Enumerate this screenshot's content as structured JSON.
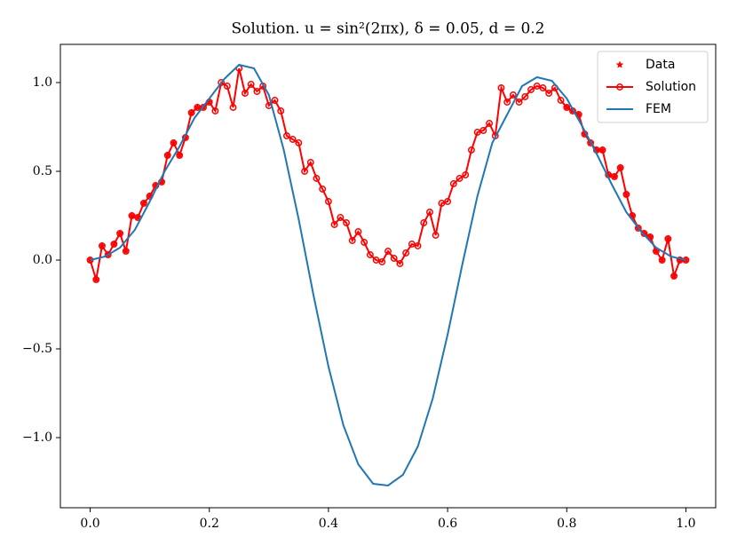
{
  "chart_data": {
    "type": "line",
    "title": "Solution. u = sin²(2πx), δ = 0.05, d = 0.2",
    "xlim": [
      -0.05,
      1.05
    ],
    "ylim": [
      -1.395,
      1.215
    ],
    "xticks": [
      {
        "value": 0,
        "label": "0.0"
      },
      0.2,
      0.4,
      0.6,
      0.8,
      {
        "value": 1,
        "label": "1.0"
      }
    ],
    "yticks": [
      {
        "value": -1,
        "label": "−1.0"
      },
      {
        "value": -0.5,
        "label": "−0.5"
      },
      {
        "value": 0,
        "label": "0.0"
      },
      0.5,
      {
        "value": 1,
        "label": "1.0"
      }
    ],
    "legend": "upper right",
    "series": [
      {
        "name": "Data",
        "color": "#ff0000",
        "marker": "star",
        "line": false,
        "x": [
          0,
          0.01,
          0.02,
          0.03,
          0.04,
          0.05,
          0.06,
          0.07,
          0.08,
          0.09,
          0.1,
          0.11,
          0.12,
          0.13,
          0.14,
          0.15,
          0.16,
          0.17,
          0.18,
          0.19,
          0.2,
          0.8,
          0.81,
          0.82,
          0.83,
          0.84,
          0.85,
          0.86,
          0.87,
          0.88,
          0.89,
          0.9,
          0.91,
          0.92,
          0.93,
          0.94,
          0.95,
          0.96,
          0.97,
          0.98,
          0.99,
          1
        ],
        "values": [
          0,
          -0.11,
          0.08,
          0.03,
          0.09,
          0.15,
          0.05,
          0.25,
          0.24,
          0.32,
          0.36,
          0.42,
          0.44,
          0.59,
          0.66,
          0.59,
          0.69,
          0.83,
          0.86,
          0.86,
          0.89,
          0.86,
          0.84,
          0.82,
          0.71,
          0.66,
          0.62,
          0.62,
          0.48,
          0.47,
          0.52,
          0.37,
          0.25,
          0.18,
          0.15,
          0.13,
          0.05,
          0,
          0.12,
          -0.09,
          0,
          0
        ]
      },
      {
        "name": "Solution",
        "color": "#ff0000",
        "marker": "circle",
        "line": true,
        "x": [
          0,
          0.01,
          0.02,
          0.03,
          0.04,
          0.05,
          0.06,
          0.07,
          0.08,
          0.09,
          0.1,
          0.11,
          0.12,
          0.13,
          0.14,
          0.15,
          0.16,
          0.17,
          0.18,
          0.19,
          0.2,
          0.21,
          0.22,
          0.23,
          0.24,
          0.25,
          0.26,
          0.27,
          0.28,
          0.29,
          0.3,
          0.31,
          0.32,
          0.33,
          0.34,
          0.35,
          0.36,
          0.37,
          0.38,
          0.39,
          0.4,
          0.41,
          0.42,
          0.43,
          0.44,
          0.45,
          0.46,
          0.47,
          0.48,
          0.49,
          0.5,
          0.51,
          0.52,
          0.53,
          0.54,
          0.55,
          0.56,
          0.57,
          0.58,
          0.59,
          0.6,
          0.61,
          0.62,
          0.63,
          0.64,
          0.65,
          0.66,
          0.67,
          0.68,
          0.69,
          0.7,
          0.71,
          0.72,
          0.73,
          0.74,
          0.75,
          0.76,
          0.77,
          0.78,
          0.79,
          0.8,
          0.81,
          0.82,
          0.83,
          0.84,
          0.85,
          0.86,
          0.87,
          0.88,
          0.89,
          0.9,
          0.91,
          0.92,
          0.93,
          0.94,
          0.95,
          0.96,
          0.97,
          0.98,
          0.99,
          1
        ],
        "values": [
          0,
          -0.11,
          0.08,
          0.03,
          0.09,
          0.15,
          0.05,
          0.25,
          0.24,
          0.32,
          0.36,
          0.42,
          0.44,
          0.59,
          0.66,
          0.59,
          0.69,
          0.83,
          0.86,
          0.86,
          0.89,
          0.84,
          1.0,
          0.98,
          0.86,
          1.08,
          0.94,
          0.99,
          0.95,
          0.98,
          0.87,
          0.9,
          0.84,
          0.7,
          0.68,
          0.66,
          0.5,
          0.55,
          0.46,
          0.4,
          0.33,
          0.2,
          0.24,
          0.21,
          0.11,
          0.16,
          0.1,
          0.03,
          0,
          -0.01,
          0.05,
          0.01,
          -0.02,
          0.04,
          0.09,
          0.08,
          0.21,
          0.27,
          0.14,
          0.32,
          0.33,
          0.43,
          0.46,
          0.48,
          0.62,
          0.72,
          0.73,
          0.77,
          0.7,
          0.97,
          0.89,
          0.93,
          0.89,
          0.92,
          0.96,
          0.98,
          0.97,
          0.94,
          0.97,
          0.9,
          0.86,
          0.84,
          0.82,
          0.71,
          0.66,
          0.62,
          0.62,
          0.48,
          0.47,
          0.52,
          0.37,
          0.25,
          0.18,
          0.15,
          0.13,
          0.05,
          0,
          0.12,
          -0.09,
          0,
          0
        ]
      },
      {
        "name": "FEM",
        "color": "#1f77b4",
        "marker": "none",
        "line": true,
        "x": [
          0,
          0.025,
          0.05,
          0.075,
          0.1,
          0.125,
          0.15,
          0.175,
          0.2,
          0.225,
          0.25,
          0.275,
          0.3,
          0.325,
          0.35,
          0.375,
          0.4,
          0.425,
          0.45,
          0.475,
          0.5,
          0.525,
          0.55,
          0.575,
          0.6,
          0.625,
          0.65,
          0.675,
          0.7,
          0.725,
          0.75,
          0.775,
          0.8,
          0.825,
          0.85,
          0.875,
          0.9,
          0.925,
          0.95,
          0.975,
          1
        ],
        "values": [
          0,
          0.02,
          0.07,
          0.17,
          0.33,
          0.5,
          0.64,
          0.8,
          0.91,
          1.02,
          1.1,
          1.08,
          0.93,
          0.62,
          0.23,
          -0.2,
          -0.6,
          -0.93,
          -1.15,
          -1.26,
          -1.27,
          -1.21,
          -1.05,
          -0.78,
          -0.42,
          -0.02,
          0.36,
          0.66,
          0.82,
          0.98,
          1.03,
          1.01,
          0.91,
          0.76,
          0.6,
          0.43,
          0.27,
          0.16,
          0.07,
          0.02,
          0
        ]
      }
    ]
  }
}
